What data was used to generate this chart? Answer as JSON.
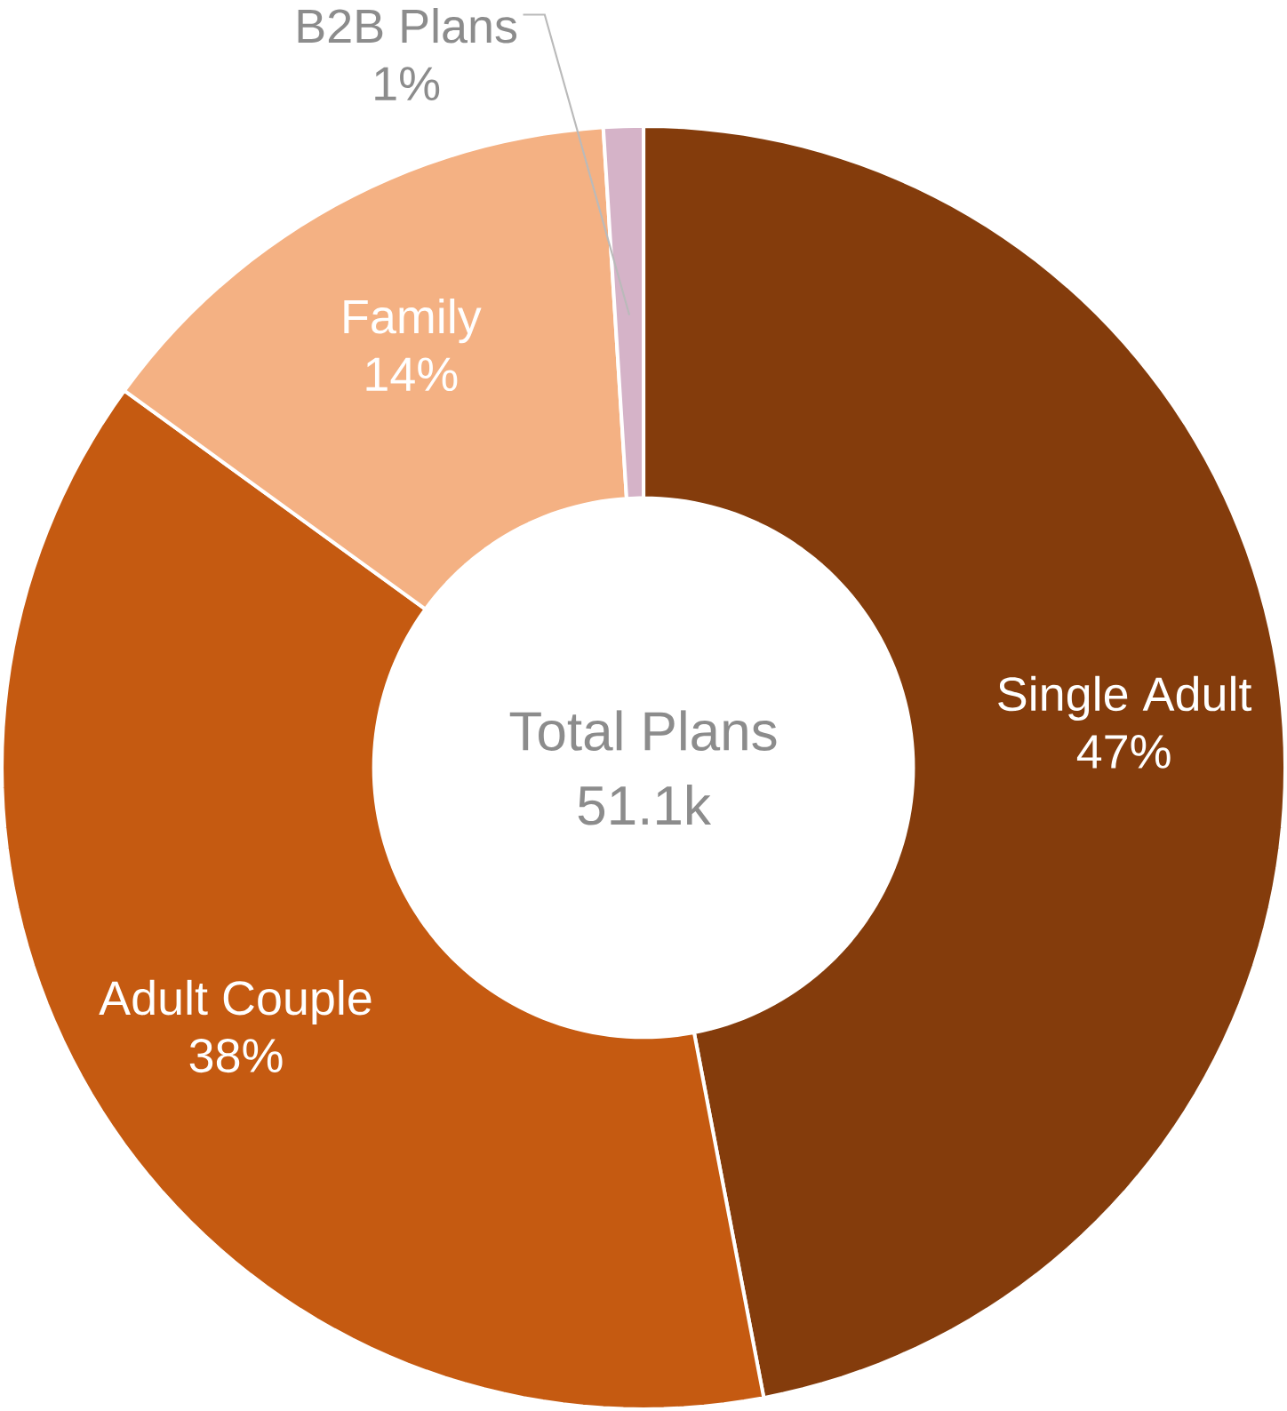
{
  "chart_data": {
    "type": "donut",
    "categories": [
      "Single Adult",
      "Adult Couple",
      "Family",
      "B2B Plans"
    ],
    "values": [
      47,
      38,
      14,
      1
    ],
    "colors": [
      "#843c0c",
      "#c55a11",
      "#f4b183",
      "#d5b3c8"
    ],
    "value_labels": [
      "47%",
      "38%",
      "14%",
      "1%"
    ],
    "annotations": [
      "Total Plans",
      "51.1k"
    ]
  }
}
